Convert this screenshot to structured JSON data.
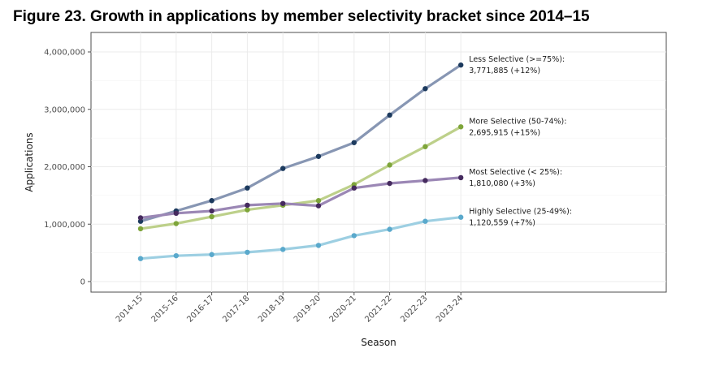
{
  "figure_title": "Figure 23. Growth in applications by member selectivity bracket since 2014–15",
  "chart_data": {
    "type": "line",
    "title": "Figure 23. Growth in applications by member selectivity bracket since 2014–15",
    "xlabel": "Season",
    "ylabel": "Applications",
    "ylim": [
      -100000,
      4200000
    ],
    "yticks": [
      0,
      1000000,
      2000000,
      3000000,
      4000000
    ],
    "ytick_labels": [
      "0",
      "1,000,000",
      "2,000,000",
      "3,000,000",
      "4,000,000"
    ],
    "grid": true,
    "categories": [
      "2014-15",
      "2015-16",
      "2016-17",
      "2017-18",
      "2018-19",
      "2019-20",
      "2020-21",
      "2021-22",
      "2022-23",
      "2023-24"
    ],
    "series": [
      {
        "name": "Less Selective (>=75%)",
        "line_color": "#8796b3",
        "point_color": "#1c3a5e",
        "values": [
          1050000,
          1230000,
          1410000,
          1630000,
          1970000,
          2180000,
          2420000,
          2900000,
          3360000,
          3771885
        ],
        "label_line1": "Less Selective (>=75%):",
        "label_line2": "3,771,885 (+12%)"
      },
      {
        "name": "More Selective (50-74%)",
        "line_color": "#bdd08a",
        "point_color": "#7ea53a",
        "values": [
          920000,
          1010000,
          1130000,
          1250000,
          1330000,
          1410000,
          1690000,
          2030000,
          2350000,
          2695915
        ],
        "label_line1": "More Selective (50-74%):",
        "label_line2": "2,695,915 (+15%)"
      },
      {
        "name": "Most Selective (< 25%)",
        "line_color": "#9b87b5",
        "point_color": "#452a5e",
        "values": [
          1110000,
          1190000,
          1230000,
          1330000,
          1360000,
          1320000,
          1630000,
          1710000,
          1760000,
          1810080
        ],
        "label_line1": "Most Selective (< 25%):",
        "label_line2": "1,810,080 (+3%)"
      },
      {
        "name": "Highly Selective (25-49%)",
        "line_color": "#9dcfe2",
        "point_color": "#5aa9cc",
        "values": [
          400000,
          450000,
          470000,
          510000,
          560000,
          630000,
          800000,
          910000,
          1050000,
          1120559
        ],
        "label_line1": "Highly Selective (25-49%):",
        "label_line2": "1,120,559 (+7%)"
      }
    ]
  }
}
